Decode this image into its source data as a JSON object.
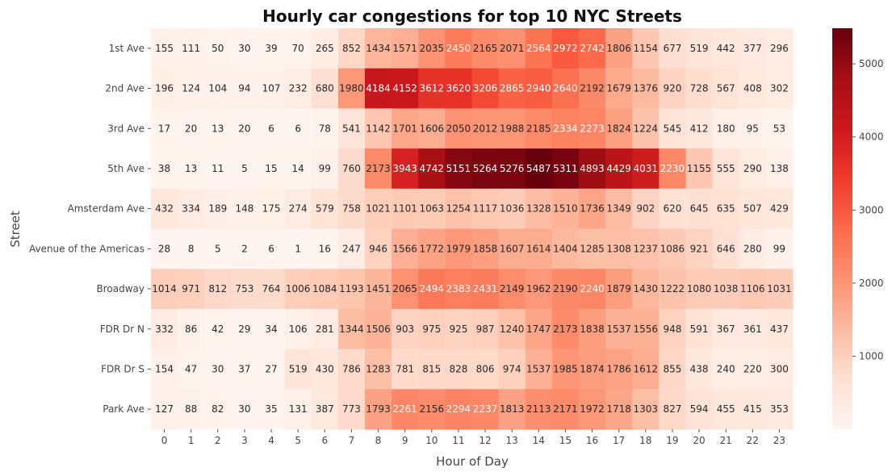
{
  "chart_data": {
    "type": "heatmap",
    "title": "Hourly car congestions for top 10 NYC Streets",
    "xlabel": "Hour of Day",
    "ylabel": "Street",
    "x": [
      "0",
      "1",
      "2",
      "3",
      "4",
      "5",
      "6",
      "7",
      "8",
      "9",
      "10",
      "11",
      "12",
      "13",
      "14",
      "15",
      "16",
      "17",
      "18",
      "19",
      "20",
      "21",
      "22",
      "23"
    ],
    "y": [
      "1st Ave",
      "2nd Ave",
      "3rd Ave",
      "5th Ave",
      "Amsterdam Ave",
      "Avenue of the Americas",
      "Broadway",
      "FDR Dr N",
      "FDR Dr S",
      "Park Ave"
    ],
    "values": [
      [
        155,
        111,
        50,
        30,
        39,
        70,
        265,
        852,
        1434,
        1571,
        2035,
        2450,
        2165,
        2071,
        2564,
        2972,
        2742,
        1806,
        1154,
        677,
        519,
        442,
        377,
        296
      ],
      [
        196,
        124,
        104,
        94,
        107,
        232,
        680,
        1980,
        4184,
        4152,
        3612,
        3620,
        3206,
        2865,
        2940,
        2640,
        2192,
        1679,
        1376,
        920,
        728,
        567,
        408,
        302
      ],
      [
        17,
        20,
        13,
        20,
        6,
        6,
        78,
        541,
        1142,
        1701,
        1606,
        2050,
        2012,
        1988,
        2185,
        2334,
        2273,
        1824,
        1224,
        545,
        412,
        180,
        95,
        53
      ],
      [
        38,
        13,
        11,
        5,
        15,
        14,
        99,
        760,
        2173,
        3943,
        4742,
        5151,
        5264,
        5276,
        5487,
        5311,
        4893,
        4429,
        4031,
        2230,
        1155,
        555,
        290,
        138
      ],
      [
        432,
        334,
        189,
        148,
        175,
        274,
        579,
        758,
        1021,
        1101,
        1063,
        1254,
        1117,
        1036,
        1328,
        1510,
        1736,
        1349,
        902,
        620,
        645,
        635,
        507,
        429
      ],
      [
        28,
        8,
        5,
        2,
        6,
        1,
        16,
        247,
        946,
        1566,
        1772,
        1979,
        1858,
        1607,
        1614,
        1404,
        1285,
        1308,
        1237,
        1086,
        921,
        646,
        280,
        99
      ],
      [
        1014,
        971,
        812,
        753,
        764,
        1006,
        1084,
        1193,
        1451,
        2065,
        2494,
        2383,
        2431,
        2149,
        1962,
        2190,
        2240,
        1879,
        1430,
        1222,
        1080,
        1038,
        1106,
        1031
      ],
      [
        332,
        86,
        42,
        29,
        34,
        106,
        281,
        1344,
        1506,
        903,
        975,
        925,
        987,
        1240,
        1747,
        2173,
        1838,
        1537,
        1556,
        948,
        591,
        367,
        361,
        437
      ],
      [
        154,
        47,
        30,
        37,
        27,
        519,
        430,
        786,
        1283,
        781,
        815,
        828,
        806,
        974,
        1537,
        1985,
        1874,
        1786,
        1612,
        855,
        438,
        240,
        220,
        300
      ],
      [
        127,
        88,
        82,
        30,
        35,
        131,
        387,
        773,
        1793,
        2261,
        2156,
        2294,
        2237,
        1813,
        2113,
        2171,
        1972,
        1718,
        1303,
        827,
        594,
        455,
        415,
        353
      ]
    ],
    "colormap": "Reds",
    "value_range": [
      1,
      5487
    ],
    "colorbar_ticks": [
      1000,
      2000,
      3000,
      4000,
      5000
    ],
    "grid": false,
    "legend": "colorbar-right"
  }
}
